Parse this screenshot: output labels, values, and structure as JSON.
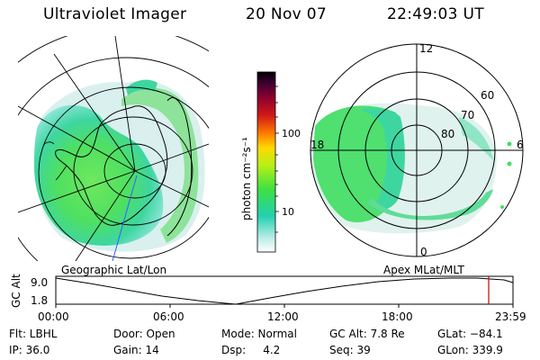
{
  "header": {
    "title": "Ultraviolet Imager",
    "date": "20 Nov 07",
    "time": "22:49:03 UT"
  },
  "colorbar": {
    "unit_label": "photon cm⁻²s⁻¹",
    "ticks": [
      "100",
      "10"
    ],
    "colors": [
      "#000000",
      "#3a0030",
      "#8a0030",
      "#d01818",
      "#ff7a00",
      "#ffd800",
      "#b6f018",
      "#40e040",
      "#22d0b0",
      "#ffffff"
    ]
  },
  "geo_map": {
    "caption": "Geographic Lat/Lon"
  },
  "polar_map": {
    "caption": "Apex MLat/MLT",
    "mlt_labels": [
      "12",
      "18",
      "6",
      "0"
    ],
    "lat_labels": [
      "60",
      "70",
      "80"
    ]
  },
  "timeline": {
    "y_label": "GC Alt",
    "y_ticks": [
      "9.0",
      "1.8"
    ],
    "x_ticks": [
      "00:00",
      "06:00",
      "12:00",
      "18:00",
      "23:59"
    ],
    "marker_color": "#cc0000"
  },
  "footer": {
    "filter": "Flt: LBHL",
    "ip": "IP: 36.0",
    "door": "Door: Open",
    "gain": "Gain: 14",
    "mode": "Mode: Normal",
    "dsp": "Dsp:     4.2",
    "gc_alt": "GC Alt: 7.8 Re",
    "seq": "Seq: 39",
    "glat": "GLat: −84.1",
    "glon": "GLon: 339.9"
  }
}
